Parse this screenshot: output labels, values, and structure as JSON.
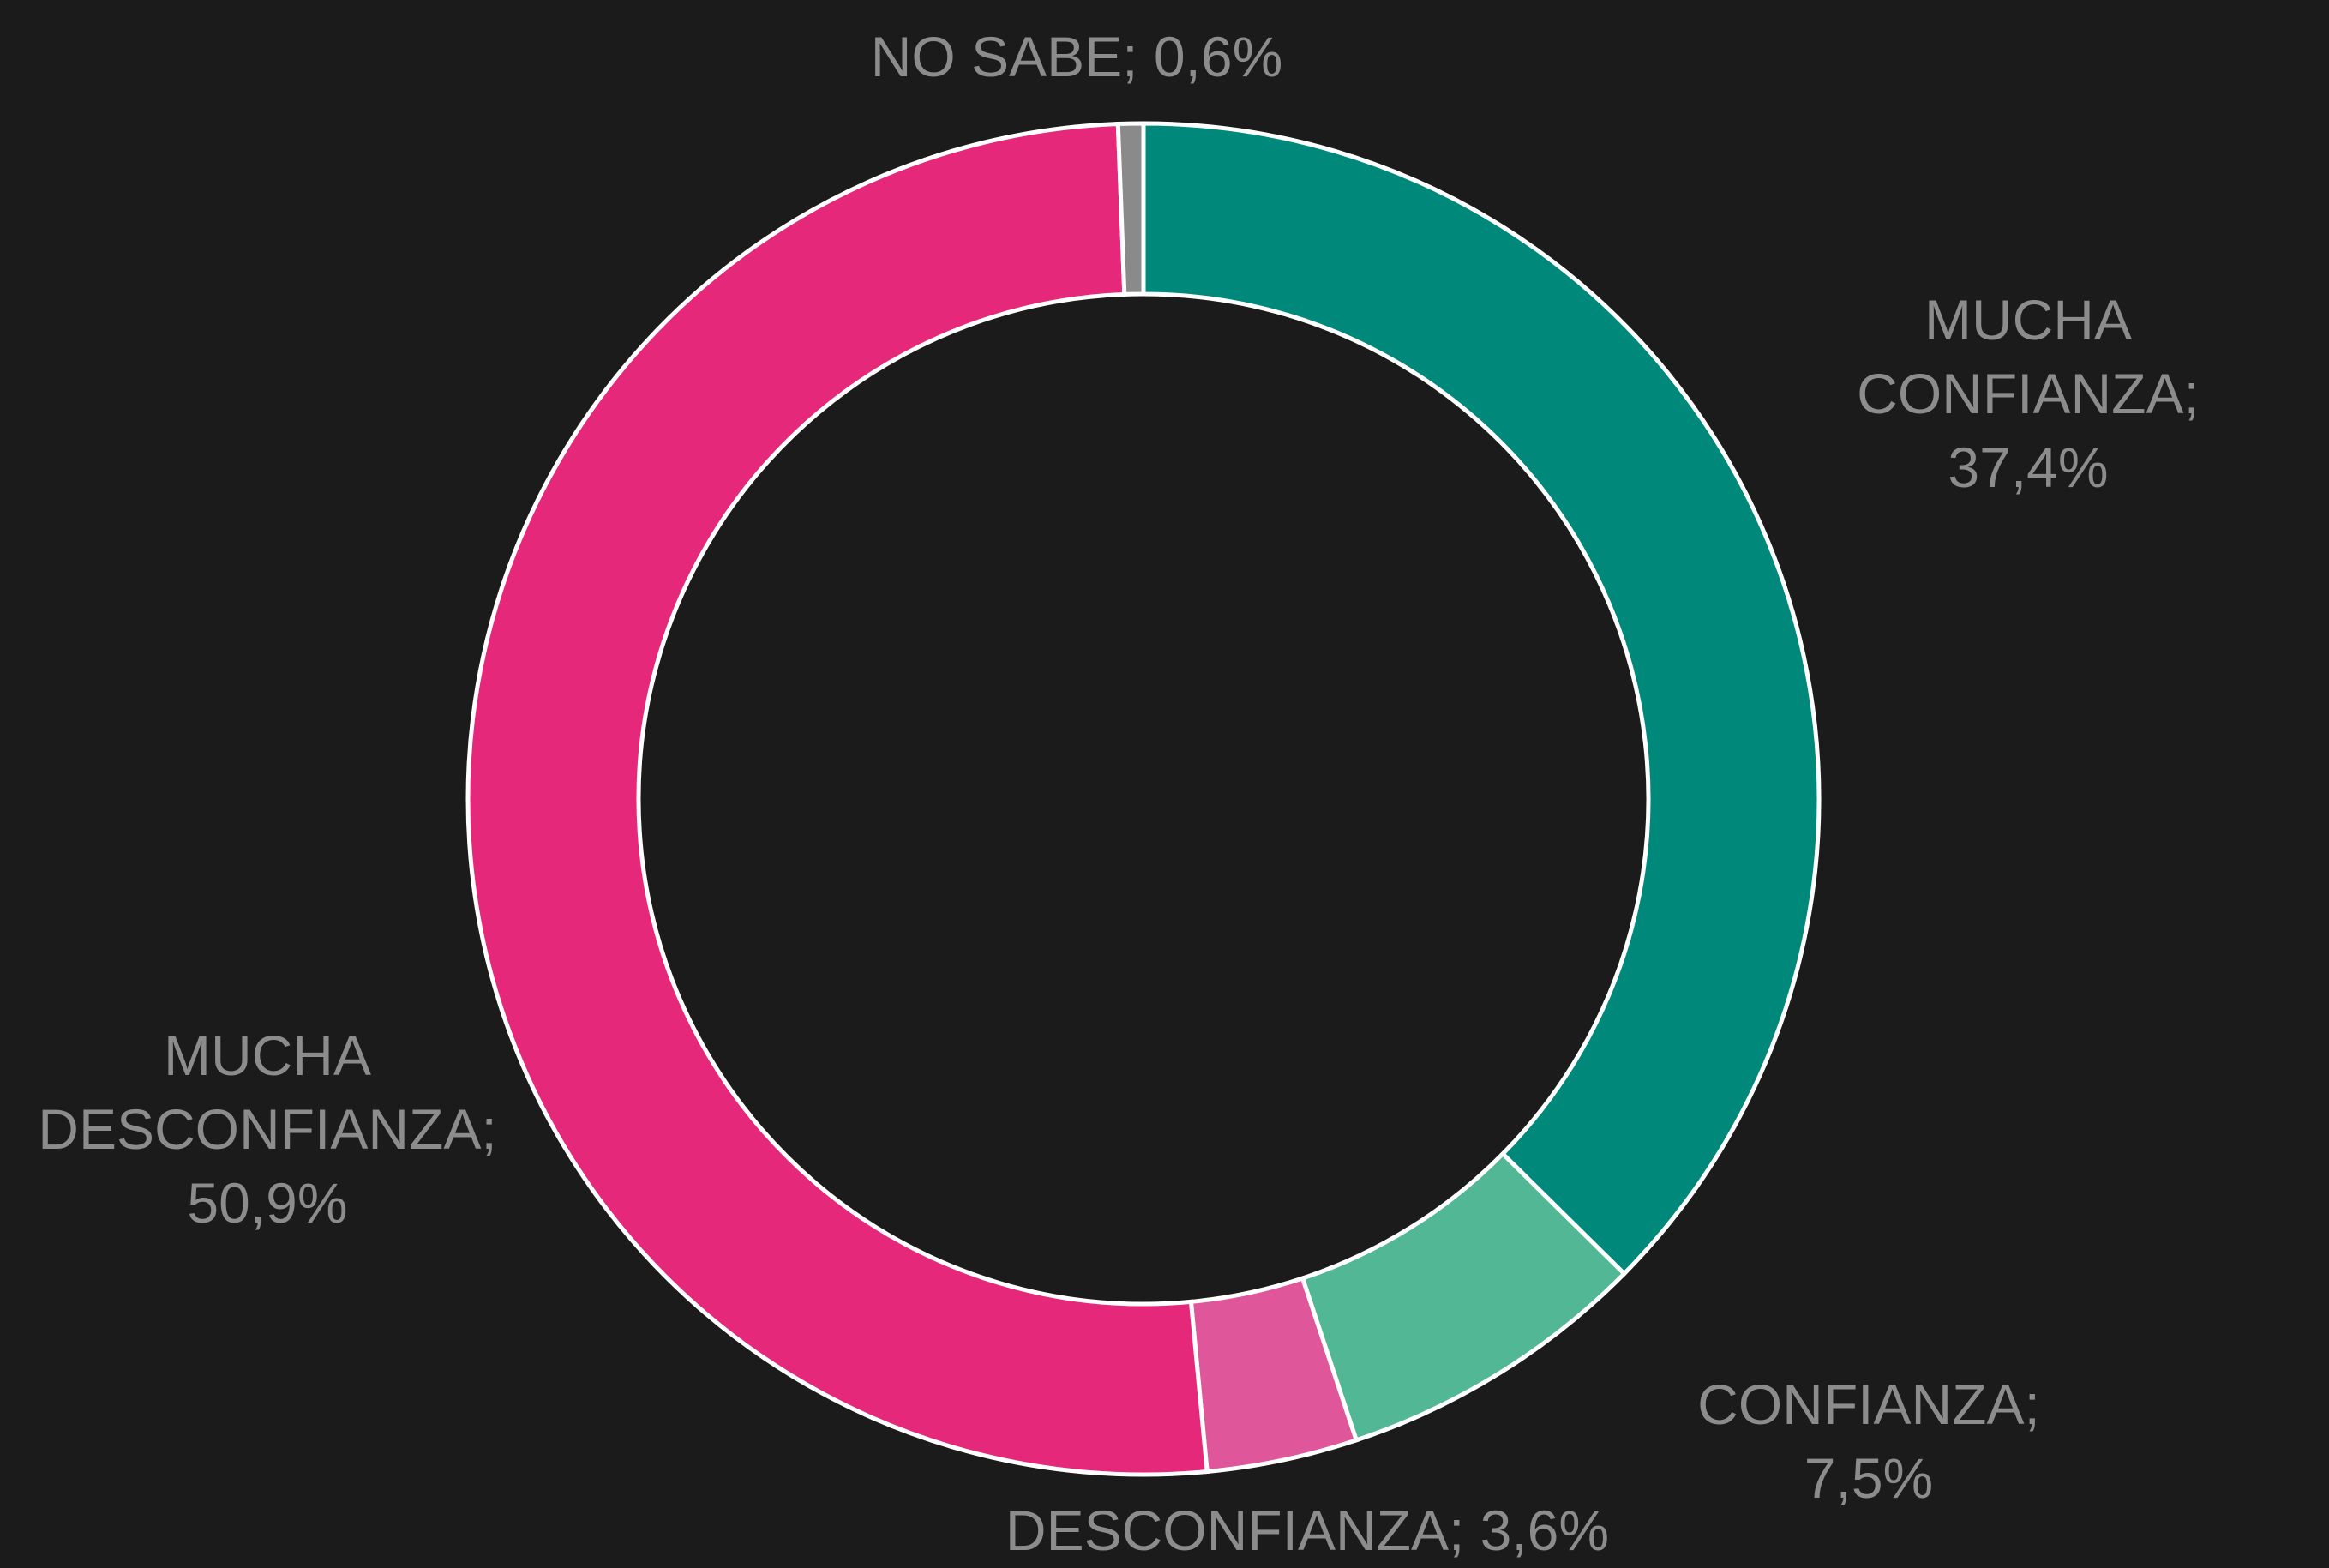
{
  "chart_data": {
    "type": "donut",
    "values": [
      37.4,
      7.5,
      3.6,
      50.9,
      0.6
    ],
    "value_labels": [
      "MUCHA\nCONFIANZA; 37,4%",
      "CONFIANZA; 7,5%",
      "DESCONFIANZA; 3,6%",
      "MUCHA\nDESCONFIANZA;\n50,9%",
      "NO SABE; 0,6%"
    ],
    "colors": [
      "#00897b",
      "#52b795",
      "#e0569a",
      "#e6287a",
      "#8a8a8a"
    ]
  }
}
